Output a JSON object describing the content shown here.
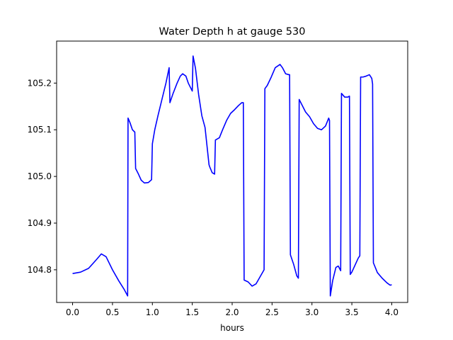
{
  "chart_data": {
    "type": "line",
    "title": "Water Depth h at gauge 530",
    "xlabel": "hours",
    "ylabel": "",
    "xlim": [
      -0.2,
      4.2
    ],
    "ylim": [
      104.73,
      105.29
    ],
    "xticks": [
      0.0,
      0.5,
      1.0,
      1.5,
      2.0,
      2.5,
      3.0,
      3.5,
      4.0
    ],
    "xtick_labels": [
      "0.0",
      "0.5",
      "1.0",
      "1.5",
      "2.0",
      "2.5",
      "3.0",
      "3.5",
      "4.0"
    ],
    "yticks": [
      104.8,
      104.9,
      105.0,
      105.1,
      105.2
    ],
    "ytick_labels": [
      "104.8",
      "104.9",
      "105.0",
      "105.1",
      "105.2"
    ],
    "grid": false,
    "legend": "none",
    "series": [
      {
        "color": "#0000ff",
        "x": [
          0.0,
          0.1,
          0.2,
          0.3,
          0.36,
          0.42,
          0.5,
          0.58,
          0.65,
          0.69,
          0.695,
          0.72,
          0.75,
          0.78,
          0.79,
          0.82,
          0.86,
          0.9,
          0.95,
          0.99,
          1.0,
          1.03,
          1.07,
          1.12,
          1.17,
          1.21,
          1.22,
          1.26,
          1.31,
          1.35,
          1.38,
          1.42,
          1.45,
          1.5,
          1.51,
          1.54,
          1.58,
          1.62,
          1.66,
          1.71,
          1.72,
          1.75,
          1.78,
          1.79,
          1.84,
          1.88,
          1.93,
          1.98,
          2.03,
          2.08,
          2.12,
          2.14,
          2.15,
          2.2,
          2.25,
          2.3,
          2.35,
          2.4,
          2.41,
          2.44,
          2.49,
          2.54,
          2.6,
          2.63,
          2.67,
          2.71,
          2.72,
          2.73,
          2.77,
          2.81,
          2.83,
          2.84,
          2.87,
          2.92,
          2.97,
          3.02,
          3.07,
          3.12,
          3.17,
          3.21,
          3.22,
          3.23,
          3.26,
          3.3,
          3.33,
          3.36,
          3.37,
          3.41,
          3.45,
          3.47,
          3.48,
          3.5,
          3.54,
          3.58,
          3.6,
          3.61,
          3.64,
          3.68,
          3.72,
          3.75,
          3.76,
          3.77,
          3.82,
          3.88,
          3.94,
          3.98,
          4.0
        ],
        "y": [
          104.792,
          104.795,
          104.803,
          104.822,
          104.834,
          104.828,
          104.8,
          104.776,
          104.757,
          104.744,
          105.125,
          105.115,
          105.1,
          105.095,
          105.017,
          105.007,
          104.992,
          104.986,
          104.987,
          104.993,
          105.07,
          105.1,
          105.13,
          105.165,
          105.2,
          105.233,
          105.158,
          105.178,
          105.2,
          105.215,
          105.22,
          105.215,
          105.2,
          105.183,
          105.258,
          105.232,
          105.175,
          105.13,
          105.105,
          105.025,
          105.02,
          105.008,
          105.005,
          105.078,
          105.083,
          105.1,
          105.12,
          105.135,
          105.143,
          105.152,
          105.158,
          105.158,
          104.778,
          104.774,
          104.765,
          104.77,
          104.785,
          104.8,
          105.188,
          105.195,
          105.213,
          105.233,
          105.24,
          105.233,
          105.22,
          105.218,
          105.218,
          104.832,
          104.812,
          104.787,
          104.782,
          105.165,
          105.155,
          105.138,
          105.128,
          105.113,
          105.103,
          105.1,
          105.108,
          105.125,
          105.12,
          104.744,
          104.777,
          104.805,
          104.808,
          104.798,
          105.178,
          105.17,
          105.17,
          105.172,
          104.79,
          104.795,
          104.81,
          104.825,
          104.83,
          105.213,
          105.213,
          105.215,
          105.218,
          105.21,
          105.198,
          104.815,
          104.794,
          104.782,
          104.772,
          104.767,
          104.768
        ]
      }
    ]
  }
}
